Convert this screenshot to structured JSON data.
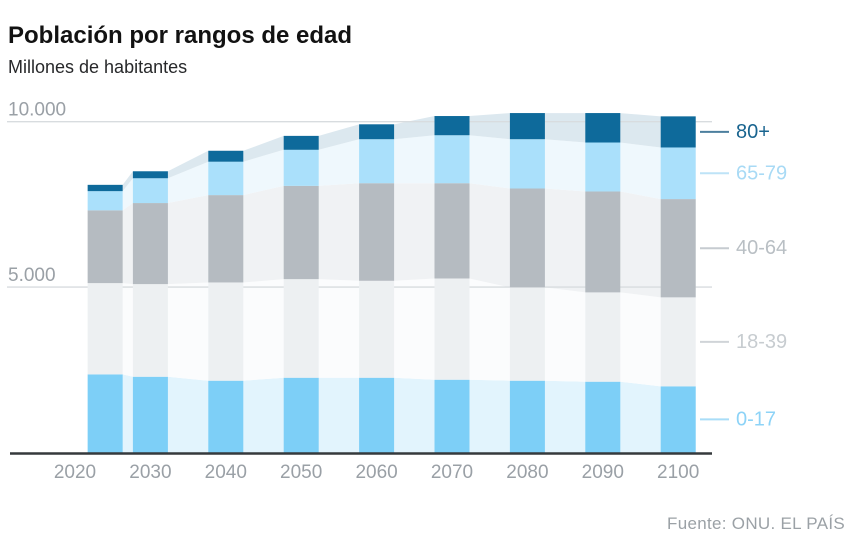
{
  "header": {
    "title": "Población por rangos de edad",
    "subtitle": "Millones de habitantes"
  },
  "footer": {
    "source": "Fuente: ONU. EL PAÍS"
  },
  "chart_data": {
    "type": "bar",
    "variant": "stacked bars with faded stacked-area behind",
    "title": "Población por rangos de edad",
    "subtitle": "Millones de habitantes",
    "unit": "millions of inhabitants",
    "x": [
      2024,
      2030,
      2040,
      2050,
      2060,
      2070,
      2080,
      2090,
      2100
    ],
    "x_tick_labels": [
      "2020",
      "2030",
      "2040",
      "2050",
      "2060",
      "2070",
      "2080",
      "2090",
      "2100"
    ],
    "x_tick_years": [
      2020,
      2030,
      2040,
      2050,
      2060,
      2070,
      2080,
      2090,
      2100
    ],
    "y_ticks": [
      {
        "value": 5000,
        "label": "5.000"
      },
      {
        "value": 10000,
        "label": "10.000"
      }
    ],
    "ylim": [
      0,
      10400
    ],
    "grid": "horizontal",
    "legend_position": "right",
    "series": [
      {
        "name": "0-17",
        "values": [
          2360,
          2290,
          2170,
          2260,
          2260,
          2200,
          2170,
          2140,
          2000
        ],
        "bar_color": "#7dcff7",
        "area_color": "#e2f4fd",
        "label_color": "#8dd3f7",
        "leader_color": "#a9ddf8"
      },
      {
        "name": "18-39",
        "values": [
          2760,
          2800,
          2970,
          2980,
          2930,
          3060,
          2820,
          2700,
          2690
        ],
        "bar_color": "#edf0f2",
        "area_color": "#fbfcfd",
        "label_color": "#c7ccd0",
        "leader_color": "#d0d4d8"
      },
      {
        "name": "40-64",
        "values": [
          2200,
          2450,
          2640,
          2820,
          2950,
          2880,
          2990,
          3050,
          2970
        ],
        "bar_color": "#b5bbc1",
        "area_color": "#f0f2f4",
        "label_color": "#b9bfc4",
        "leader_color": "#c6cbd0"
      },
      {
        "name": "65-79",
        "values": [
          580,
          750,
          1010,
          1090,
          1330,
          1450,
          1490,
          1480,
          1560
        ],
        "bar_color": "#aae0fb",
        "area_color": "#eff8fd",
        "label_color": "#a8daf5",
        "leader_color": "#bee3f7"
      },
      {
        "name": "80+",
        "values": [
          190,
          210,
          330,
          420,
          450,
          580,
          790,
          890,
          940
        ],
        "bar_color": "#0e6a9b",
        "area_color": "#dce8ef",
        "label_color": "#19648f",
        "leader_color": "#4c7f9e"
      }
    ],
    "totals": [
      8090,
      8500,
      9120,
      9570,
      9920,
      10170,
      10260,
      10260,
      10160
    ],
    "axis_text_color": "#9aa0a6",
    "grid_color": "#d8dcdf",
    "baseline_color": "#35393c"
  }
}
